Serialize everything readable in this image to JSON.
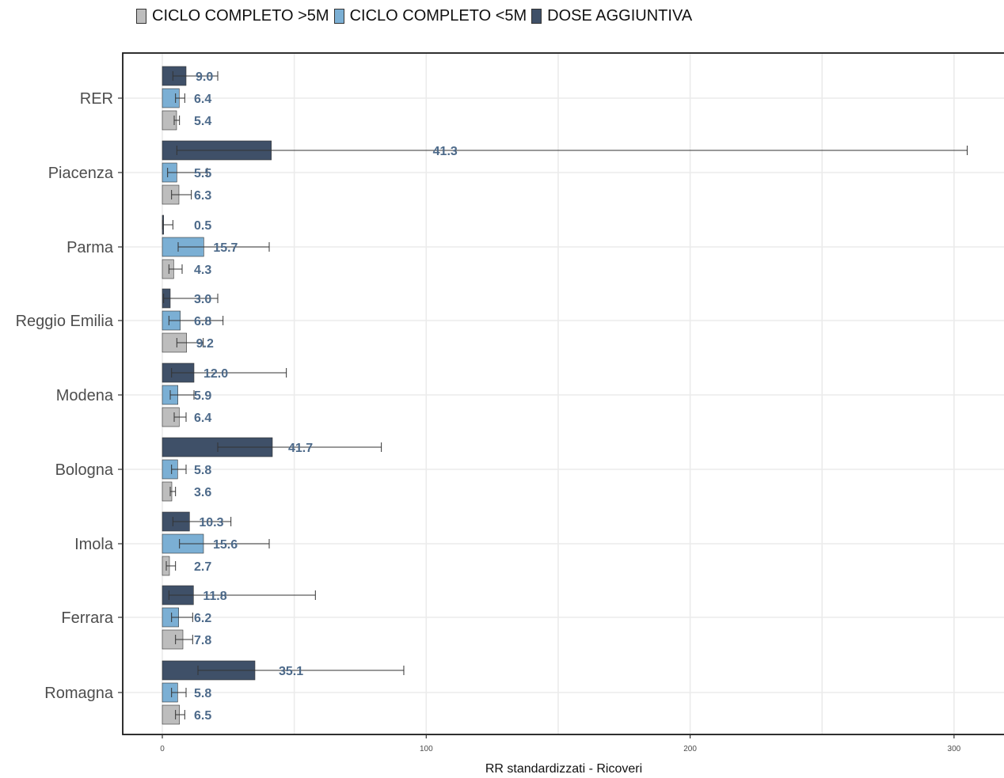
{
  "chart_data": {
    "type": "bar",
    "orientation": "horizontal",
    "xlabel": "RR standardizzati - Ricoveri",
    "ylabel": "",
    "xlim": [
      -15,
      320
    ],
    "xticks": [
      0,
      100,
      200,
      300
    ],
    "grid": true,
    "legend_position": "top",
    "categories": [
      "RER",
      "Piacenza",
      "Parma",
      "Reggio Emilia",
      "Modena",
      "Bologna",
      "Imola",
      "Ferrara",
      "Romagna"
    ],
    "series": [
      {
        "name": "DOSE AGGIUNTIVA",
        "color": "#3f5068",
        "values": [
          9.0,
          41.3,
          0.5,
          3.0,
          12.0,
          41.7,
          10.3,
          11.8,
          35.1
        ],
        "labels": [
          "9.0",
          "41.3",
          "0.5",
          "3.0",
          "12.0",
          "41.7",
          "10.3",
          "11.8",
          "35.1"
        ],
        "ci_low": [
          4,
          5.5,
          0.1,
          0.5,
          3.5,
          21,
          4,
          2.5,
          13.5
        ],
        "ci_high": [
          21,
          305,
          4,
          21,
          47,
          83,
          26,
          58,
          91.5
        ]
      },
      {
        "name": "CICLO COMPLETO <5M",
        "color": "#7bafd4",
        "values": [
          6.4,
          5.5,
          15.7,
          6.8,
          5.9,
          5.8,
          15.6,
          6.2,
          5.8
        ],
        "labels": [
          "6.4",
          "5.5",
          "15.7",
          "6.8",
          "5.9",
          "5.8",
          "15.6",
          "6.2",
          "5.8"
        ],
        "ci_low": [
          5,
          2,
          6,
          2.5,
          3,
          3.5,
          6.5,
          3.5,
          3.5
        ],
        "ci_high": [
          8.5,
          17,
          40.5,
          23,
          12,
          9,
          40.5,
          11.5,
          9
        ]
      },
      {
        "name": "CICLO COMPLETO >5M",
        "color": "#bdbdbd",
        "values": [
          5.4,
          6.3,
          4.3,
          9.2,
          6.4,
          3.6,
          2.7,
          7.8,
          6.5
        ],
        "labels": [
          "5.4",
          "6.3",
          "4.3",
          "9.2",
          "6.4",
          "3.6",
          "2.7",
          "7.8",
          "6.5"
        ],
        "ci_low": [
          4.5,
          3.5,
          2.5,
          5.5,
          4.5,
          3,
          1.5,
          5,
          5
        ],
        "ci_high": [
          6.5,
          11,
          7.5,
          15.5,
          9,
          5,
          5,
          11.5,
          8.5
        ]
      }
    ],
    "legend_order": [
      "CICLO COMPLETO >5M",
      "CICLO COMPLETO <5M",
      "DOSE AGGIUNTIVA"
    ]
  }
}
